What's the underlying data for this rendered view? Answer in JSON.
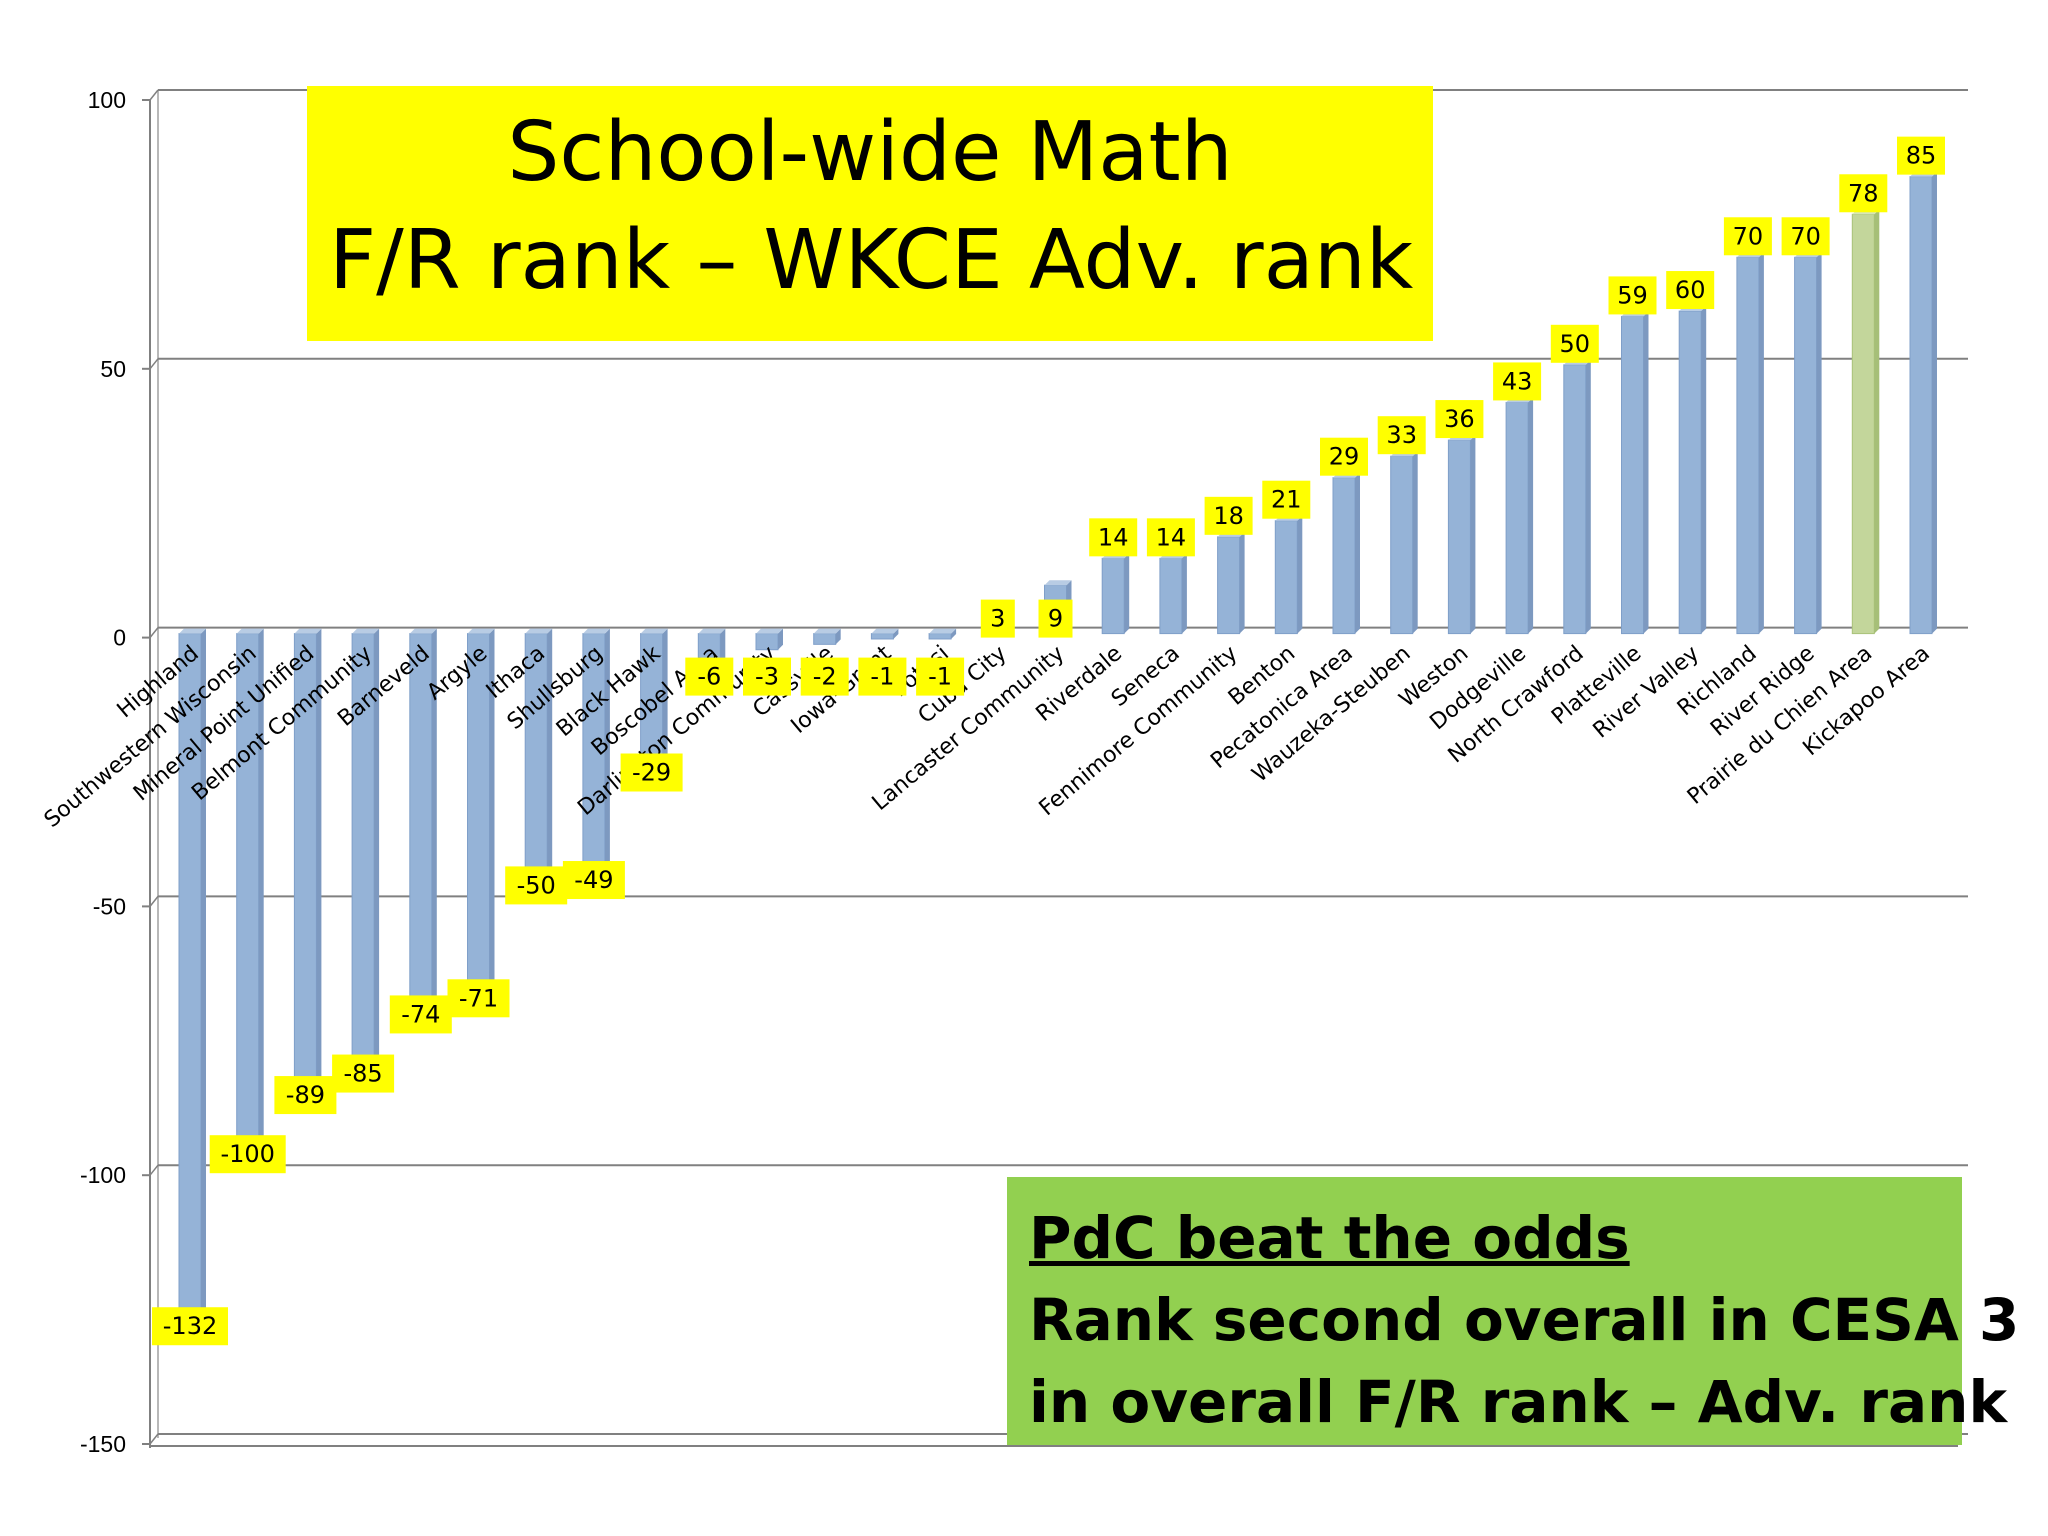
{
  "chart_data": {
    "type": "bar",
    "title": "School-wide Math",
    "subtitle": "F/R rank – WKCE Adv. rank",
    "xlabel": "",
    "ylabel": "",
    "ylim": [
      -150,
      100
    ],
    "yticks": [
      100,
      50,
      0,
      -50,
      -100,
      -150
    ],
    "grid": true,
    "categories": [
      "Highland",
      "Southwestern Wisconsin",
      "Mineral Point Unified",
      "Belmont Community",
      "Barneveld",
      "Argyle",
      "Ithaca",
      "Shullsburg",
      "Black Hawk",
      "Boscobel Area",
      "Darlington Community",
      "Cassville",
      "Iowa-Grant",
      "Potosi",
      "Cuba City",
      "Lancaster Community",
      "Riverdale",
      "Seneca",
      "Fennimore Community",
      "Benton",
      "Pecatonica Area",
      "Wauzeka-Steuben",
      "Weston",
      "Dodgeville",
      "North Crawford",
      "Platteville",
      "River Valley",
      "Richland",
      "River Ridge",
      "Prairie du Chien Area",
      "Kickapoo Area"
    ],
    "values": [
      -132,
      -100,
      -89,
      -85,
      -74,
      -71,
      -50,
      -49,
      -29,
      -6,
      -3,
      -2,
      -1,
      -1,
      3,
      9,
      14,
      14,
      18,
      21,
      29,
      33,
      36,
      43,
      50,
      59,
      60,
      70,
      70,
      78,
      85
    ],
    "highlight": "Prairie du Chien Area",
    "colors": {
      "bar": "#95b3d7",
      "highlight_bar": "#c3d69b",
      "data_label_bg": "#ffff00",
      "gridline": "#808080"
    }
  },
  "title_box": {
    "line1": "School-wide Math",
    "line2": "F/R rank – WKCE Adv. rank",
    "color": "#ffff00"
  },
  "note_box": {
    "heading": "PdC beat the odds",
    "line2": "Rank second overall in CESA 3",
    "line3": "in overall F/R rank – Adv. rank",
    "color": "#92d050"
  }
}
